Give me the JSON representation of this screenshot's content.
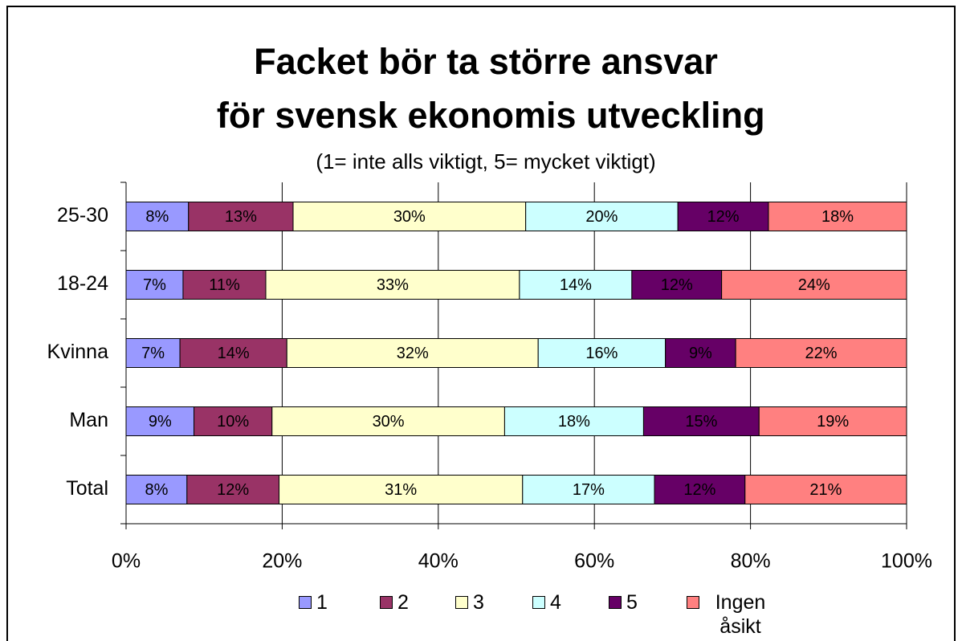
{
  "chart_data": {
    "type": "stacked_barh",
    "title": "Facket bör ta större ansvar för svensk ekonomis utveckling",
    "subtitle": "(1= inte alls viktigt, 5= mycket viktigt)",
    "categories": [
      "25-30",
      "18-24",
      "Kvinna",
      "Man",
      "Total"
    ],
    "series": [
      {
        "name": "1",
        "color": "#9999ff",
        "values": [
          8.0,
          7.3,
          6.9,
          8.7,
          7.8
        ],
        "value_labels": [
          "8%",
          "7%",
          "7%",
          "9%",
          "8%"
        ]
      },
      {
        "name": "2",
        "color": "#993366",
        "values": [
          13.4,
          10.6,
          13.7,
          10.0,
          11.8
        ],
        "value_labels": [
          "13%",
          "11%",
          "14%",
          "10%",
          "12%"
        ]
      },
      {
        "name": "3",
        "color": "#ffffcc",
        "values": [
          29.8,
          32.5,
          32.2,
          29.8,
          31.2
        ],
        "value_labels": [
          "30%",
          "33%",
          "32%",
          "30%",
          "31%"
        ]
      },
      {
        "name": "4",
        "color": "#ccffff",
        "values": [
          19.5,
          14.4,
          16.3,
          17.8,
          16.9
        ],
        "value_labels": [
          "20%",
          "14%",
          "16%",
          "18%",
          "17%"
        ]
      },
      {
        "name": "5",
        "color": "#660066",
        "values": [
          11.6,
          11.5,
          9.0,
          14.8,
          11.6
        ],
        "value_labels": [
          "12%",
          "12%",
          "9%",
          "15%",
          "12%"
        ]
      },
      {
        "name": "Ingen åsikt",
        "color": "#ff8080",
        "values": [
          17.7,
          23.7,
          21.9,
          18.9,
          20.7
        ],
        "value_labels": [
          "18%",
          "24%",
          "22%",
          "19%",
          "21%"
        ]
      }
    ],
    "xlim": [
      0,
      100
    ],
    "xticks": [
      {
        "value": 0,
        "label": "0%"
      },
      {
        "value": 20,
        "label": "20%"
      },
      {
        "value": 40,
        "label": "40%"
      },
      {
        "value": 60,
        "label": "60%"
      },
      {
        "value": 80,
        "label": "80%"
      },
      {
        "value": 100,
        "label": "100%"
      }
    ],
    "grid": true,
    "legend": "bottom"
  }
}
